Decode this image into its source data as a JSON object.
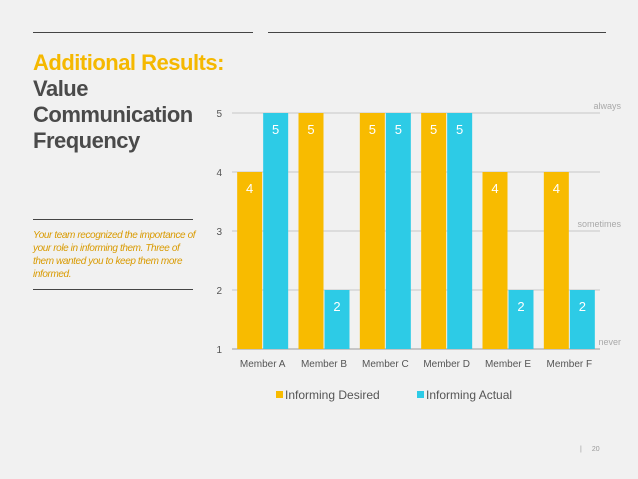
{
  "slide": {
    "title_accent": "Additional Results:",
    "title_lines": [
      "Value",
      "Communication",
      "Frequency"
    ],
    "description": "Your team recognized the importance of your role in informing them. Three of them wanted you to keep them more informed.",
    "footer_separator": "|",
    "page_number": "20"
  },
  "colors": {
    "accent": "#f5b800",
    "series_desired": "#f8bb00",
    "series_actual": "#2dcbe6",
    "text_dark": "#4a4a4a"
  },
  "chart_data": {
    "type": "bar",
    "categories": [
      "Member A",
      "Member B",
      "Member C",
      "Member D",
      "Member E",
      "Member F"
    ],
    "series": [
      {
        "name": "Informing Desired",
        "values": [
          4,
          5,
          5,
          5,
          4,
          4
        ]
      },
      {
        "name": "Informing Actual",
        "values": [
          5,
          2,
          5,
          5,
          2,
          2
        ]
      }
    ],
    "ylim": [
      1,
      5
    ],
    "yticks": [
      1,
      2,
      3,
      4,
      5
    ],
    "annotations": [
      {
        "text": "always",
        "y": 5
      },
      {
        "text": "sometimes",
        "y": 3
      },
      {
        "text": "never",
        "y": 1
      }
    ],
    "legend": "bottom",
    "grid": true
  }
}
